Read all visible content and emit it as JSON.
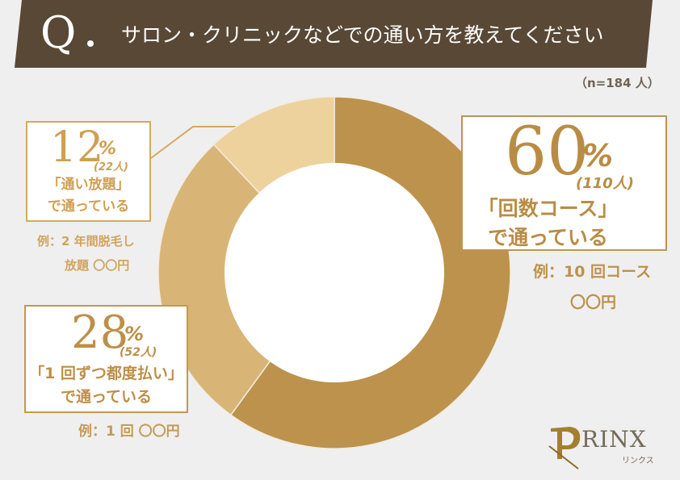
{
  "header": {
    "q_mark": "Q",
    "title": "サロン・クリニックなどでの通い方を教えてください",
    "bg_color": "#584835"
  },
  "sample": "（n=184 人）",
  "chart_data": {
    "type": "pie",
    "subtype": "donut",
    "title": "サロン・クリニックなどでの通い方を教えてください",
    "n": 184,
    "categories": [
      "回数コース",
      "1回ずつ都度払い",
      "通い放題"
    ],
    "values": [
      60,
      28,
      12
    ],
    "counts": [
      110,
      52,
      22
    ],
    "units": "%",
    "colors": [
      "#bc924d",
      "#d8b577",
      "#edd29e"
    ],
    "start_angle_deg": 0,
    "direction": "clockwise",
    "legend": "callouts"
  },
  "callouts": {
    "c60": {
      "pct": "60",
      "pct_sym": "%",
      "count": "(110人)",
      "line1": "「回数コース」",
      "line2": "で通っている",
      "example1": "例：10 回コース",
      "example2": "〇〇円"
    },
    "c28": {
      "pct": "28",
      "pct_sym": "%",
      "count": "(52人)",
      "line1": "「1 回ずつ都度払い」",
      "line2": "で通っている",
      "example1": "例：1 回 〇〇円"
    },
    "c12": {
      "pct": "12",
      "pct_sym": "%",
      "count": "(22人)",
      "line1": "「通い放題」",
      "line2": "で通っている",
      "example1": "例：2 年間脱毛し",
      "example2": "放題 〇〇円"
    }
  },
  "logo": {
    "text": "RINX",
    "sub": "リンクス"
  }
}
